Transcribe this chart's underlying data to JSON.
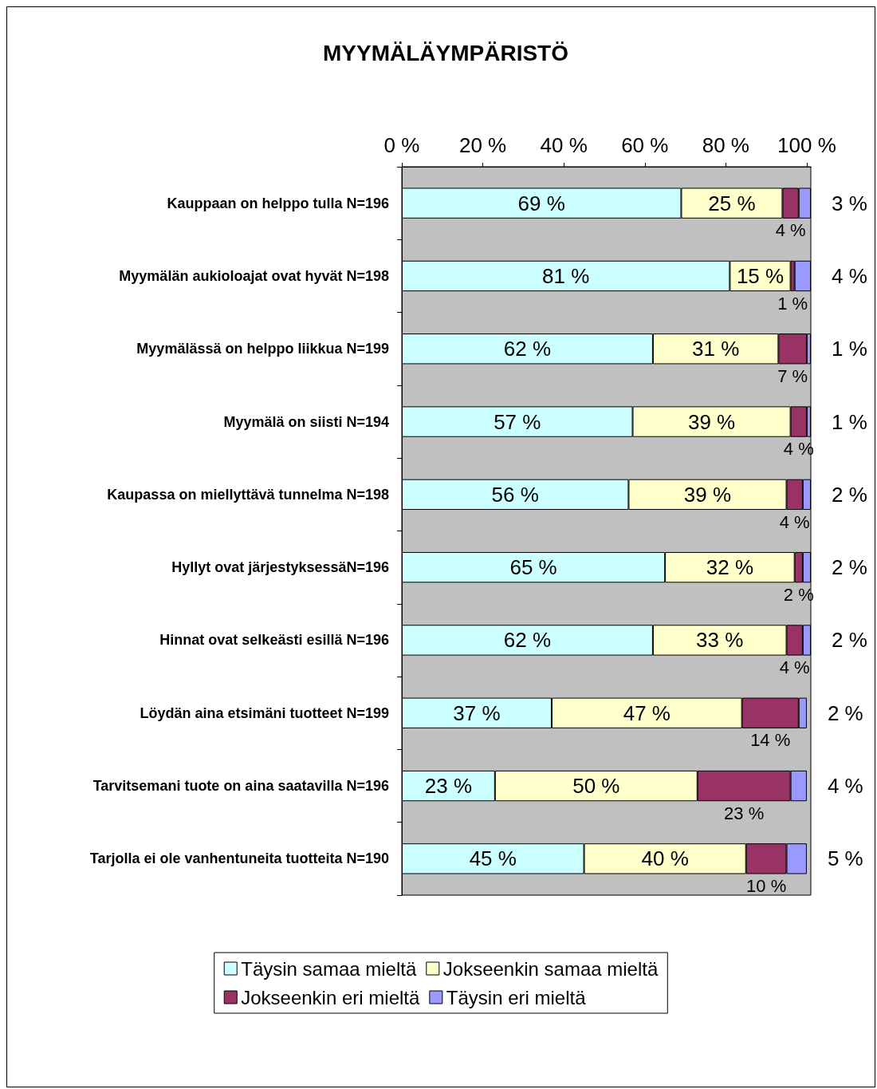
{
  "chart_data": {
    "type": "bar",
    "orientation": "horizontal",
    "stacked": true,
    "title": "MYYMÄLÄYMPÄRISTÖ",
    "categories": [
      "Kauppaan on helppo tulla N=196",
      "Myymälän aukioloajat ovat hyvät N=198",
      "Myymälässä on helppo liikkua N=199",
      "Myymälä on siisti N=194",
      "Kaupassa on miellyttävä tunnelma N=198",
      "Hyllyt ovat järjestyksessäN=196",
      "Hinnat ovat selkeästi esillä N=196",
      "Löydän aina etsimäni tuotteet N=199",
      "Tarvitsemani tuote on aina saatavilla N=196",
      "Tarjolla ei ole vanhentuneita tuotteita N=190"
    ],
    "series": [
      {
        "name": "Täysin samaa mieltä",
        "color": "#ccffff",
        "values": [
          69,
          81,
          62,
          57,
          56,
          65,
          62,
          37,
          23,
          45
        ],
        "value_labels": [
          "69 %",
          "81 %",
          "62 %",
          "57 %",
          "56 %",
          "65 %",
          "62 %",
          "37 %",
          "23 %",
          "45 %"
        ]
      },
      {
        "name": "Jokseenkin samaa mieltä",
        "color": "#ffffcc",
        "values": [
          25,
          15,
          31,
          39,
          39,
          32,
          33,
          47,
          50,
          40
        ],
        "value_labels": [
          "25 %",
          "15 %",
          "31 %",
          "39 %",
          "39 %",
          "32 %",
          "33 %",
          "47 %",
          "50 %",
          "40 %"
        ]
      },
      {
        "name": "Jokseenkin eri mieltä",
        "color": "#993366",
        "values": [
          4,
          1,
          7,
          4,
          4,
          2,
          4,
          14,
          23,
          10
        ],
        "value_labels": [
          "4 %",
          "1 %",
          "7 %",
          "4 %",
          "4 %",
          "2 %",
          "4 %",
          "14 %",
          "23 %",
          "10 %"
        ]
      },
      {
        "name": "Täysin eri mieltä",
        "color": "#9999ff",
        "values": [
          3,
          4,
          1,
          1,
          2,
          2,
          2,
          2,
          4,
          5
        ],
        "value_labels": [
          "3 %",
          "4 %",
          "1 %",
          "1 %",
          "2 %",
          "2 %",
          "2 %",
          "2 %",
          "4 %",
          "5 %"
        ]
      }
    ],
    "xlim": [
      0,
      101
    ],
    "xticks": [
      {
        "value": 0,
        "label": "0 %"
      },
      {
        "value": 20,
        "label": "20 %"
      },
      {
        "value": 40,
        "label": "40 %"
      },
      {
        "value": 60,
        "label": "60 %"
      },
      {
        "value": 80,
        "label": "80 %"
      },
      {
        "value": 100,
        "label": "100 %"
      }
    ],
    "legend": "bottom"
  }
}
